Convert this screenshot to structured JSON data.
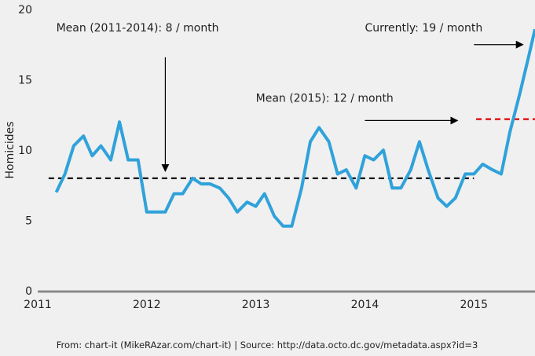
{
  "chart_data": {
    "type": "line",
    "title": "",
    "xlabel": "",
    "ylabel": "Homicides",
    "xlim": [
      2011.0,
      2015.56
    ],
    "ylim": [
      0,
      20
    ],
    "grid": false,
    "x_ticks": [
      {
        "value": 2011,
        "label": "2011"
      },
      {
        "value": 2012,
        "label": "2012"
      },
      {
        "value": 2013,
        "label": "2013"
      },
      {
        "value": 2014,
        "label": "2014"
      },
      {
        "value": 2015,
        "label": "2015"
      }
    ],
    "y_ticks": [
      {
        "value": 0,
        "label": "0"
      },
      {
        "value": 5,
        "label": "5"
      },
      {
        "value": 10,
        "label": "10"
      },
      {
        "value": 15,
        "label": "15"
      },
      {
        "value": 20,
        "label": "20"
      }
    ],
    "series": [
      {
        "color": "#30a2da",
        "points": [
          [
            2011.17,
            7.0
          ],
          [
            2011.25,
            8.3
          ],
          [
            2011.33,
            10.3
          ],
          [
            2011.42,
            11.0
          ],
          [
            2011.5,
            9.6
          ],
          [
            2011.58,
            10.3
          ],
          [
            2011.67,
            9.3
          ],
          [
            2011.75,
            12.0
          ],
          [
            2011.83,
            9.3
          ],
          [
            2011.92,
            9.3
          ],
          [
            2012.0,
            5.6
          ],
          [
            2012.08,
            5.6
          ],
          [
            2012.17,
            5.6
          ],
          [
            2012.25,
            6.9
          ],
          [
            2012.33,
            6.9
          ],
          [
            2012.42,
            8.0
          ],
          [
            2012.5,
            7.6
          ],
          [
            2012.58,
            7.6
          ],
          [
            2012.67,
            7.3
          ],
          [
            2012.75,
            6.6
          ],
          [
            2012.83,
            5.6
          ],
          [
            2012.92,
            6.3
          ],
          [
            2013.0,
            6.0
          ],
          [
            2013.08,
            6.9
          ],
          [
            2013.17,
            5.3
          ],
          [
            2013.25,
            4.6
          ],
          [
            2013.33,
            4.6
          ],
          [
            2013.42,
            7.3
          ],
          [
            2013.5,
            10.6
          ],
          [
            2013.58,
            11.6
          ],
          [
            2013.67,
            10.6
          ],
          [
            2013.75,
            8.3
          ],
          [
            2013.83,
            8.6
          ],
          [
            2013.92,
            7.3
          ],
          [
            2014.0,
            9.6
          ],
          [
            2014.08,
            9.3
          ],
          [
            2014.17,
            10.0
          ],
          [
            2014.25,
            7.3
          ],
          [
            2014.33,
            7.3
          ],
          [
            2014.42,
            8.6
          ],
          [
            2014.5,
            10.6
          ],
          [
            2014.58,
            8.6
          ],
          [
            2014.67,
            6.6
          ],
          [
            2014.75,
            6.0
          ],
          [
            2014.83,
            6.6
          ],
          [
            2014.92,
            8.3
          ],
          [
            2015.0,
            8.3
          ],
          [
            2015.08,
            9.0
          ],
          [
            2015.17,
            8.6
          ],
          [
            2015.25,
            8.3
          ],
          [
            2015.33,
            11.3
          ],
          [
            2015.42,
            14.0
          ],
          [
            2015.5,
            16.6
          ],
          [
            2015.56,
            18.6
          ]
        ]
      }
    ],
    "mean_lines": [
      {
        "x_start": 2011.1,
        "x_end": 2015.0,
        "y": 8.0,
        "color": "#000000",
        "dash": true
      },
      {
        "x_start": 2015.02,
        "x_end": 2015.56,
        "y": 12.2,
        "color": "#e00000",
        "dash": true
      }
    ],
    "annotations": [
      {
        "text": "Mean (2011-2014): 8 / month",
        "x": 2011.17,
        "y": 18.0,
        "arrow_from": [
          2012.17,
          16.6
        ],
        "arrow_to": [
          2012.17,
          8.5
        ]
      },
      {
        "text": "Mean (2015): 12 / month",
        "x": 2013.0,
        "y": 13.0,
        "arrow_from": [
          2014.0,
          12.1
        ],
        "arrow_to": [
          2014.85,
          12.1
        ]
      },
      {
        "text": "Currently: 19 / month",
        "x": 2014.0,
        "y": 18.0,
        "arrow_from": [
          2015.0,
          17.5
        ],
        "arrow_to": [
          2015.45,
          17.5
        ]
      }
    ]
  },
  "footer": {
    "source": "From: chart-it (MikeRAzar.com/chart-it) | Source: http://data.octo.dc.gov/metadata.aspx?id=3"
  }
}
